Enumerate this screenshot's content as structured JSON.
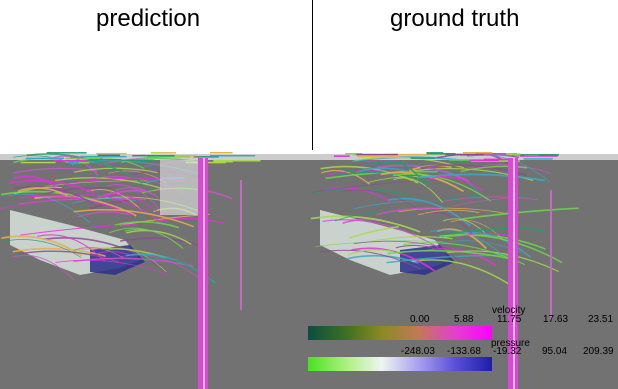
{
  "panels": {
    "left_title": "prediction",
    "right_title": "ground truth"
  },
  "legend": {
    "velocity": {
      "label": "velocity",
      "ticks": [
        "0.00",
        "5.88",
        "11.75",
        "17.63",
        "23.51"
      ],
      "colors": [
        "#0d4d3f",
        "#3b6f22",
        "#8a8a22",
        "#c07a55",
        "#e33fd0",
        "#ff00ff"
      ]
    },
    "pressure": {
      "label": "pressure",
      "ticks": [
        "-248.03",
        "-133.68",
        "-19.32",
        "95.04",
        "209.39"
      ],
      "colors": [
        "#49e21e",
        "#a8f07a",
        "#eef5f0",
        "#a9a0f0",
        "#5a4fd8",
        "#1e1ea8"
      ]
    }
  },
  "colors": {
    "ground": "#727272",
    "car_body": "#c9d2cc",
    "car_shadow": "#2a2f8a",
    "streamline_palette": [
      "#6dd64a",
      "#a8d84d",
      "#e5b24e",
      "#cc55cc",
      "#e62fe0",
      "#38a9c4",
      "#2a9a6e",
      "#8a4e8f"
    ]
  }
}
